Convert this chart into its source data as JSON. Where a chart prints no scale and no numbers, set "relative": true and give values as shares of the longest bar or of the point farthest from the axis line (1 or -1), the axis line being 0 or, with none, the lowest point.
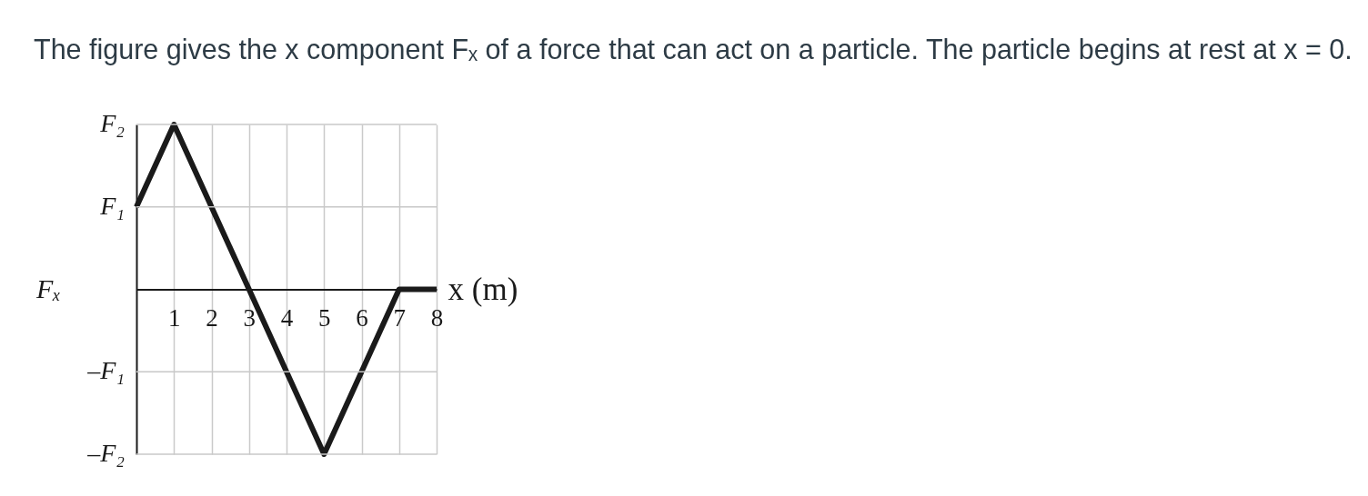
{
  "chart_data": {
    "type": "line",
    "title": "The figure gives the x component Fₓ of a force that can act on a particle. The particle begins at rest at x = 0.",
    "xlabel": "x (m)",
    "ylabel": "Fₓ",
    "relative": true,
    "x": [
      0,
      1,
      5,
      7,
      8
    ],
    "series": [
      {
        "color": "#1a1a1a",
        "values": [
          0.5,
          1,
          -1,
          0,
          0
        ]
      }
    ],
    "xlim": [
      0,
      8
    ],
    "xticks": [
      1,
      2,
      3,
      4,
      5,
      6,
      7,
      8
    ],
    "ref_lines": [
      {
        "axis": "y",
        "value": 1,
        "label": "F₂",
        "color": "#c8c8c8"
      },
      {
        "axis": "y",
        "value": 0.5,
        "label": "F₁",
        "color": "#c8c8c8"
      },
      {
        "axis": "y",
        "value": -0.5,
        "label": "–F₁",
        "color": "#c8c8c8"
      },
      {
        "axis": "y",
        "value": -1,
        "label": "–F₂",
        "color": "#c8c8c8"
      }
    ],
    "grid": "x",
    "marker": "none",
    "line_style": "solid"
  }
}
